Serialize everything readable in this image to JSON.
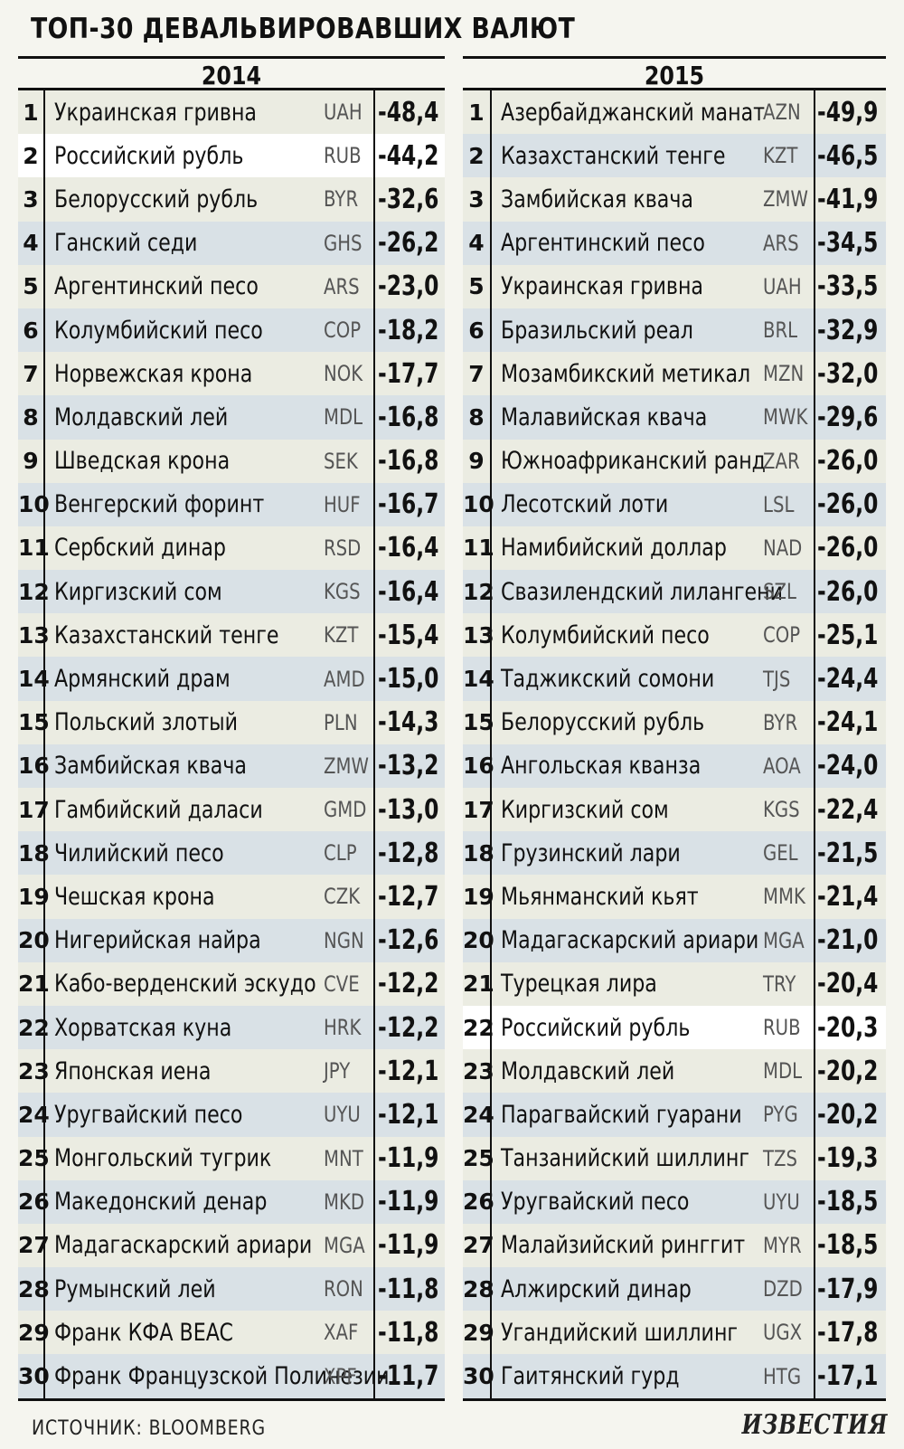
{
  "title": "ТОП-30 ДЕВАЛЬВИРОВАВШИХ ВАЛЮТ",
  "source": "ИСТОЧНИК: BLOOMBERG",
  "logo": "ИЗВЕСТИЯ",
  "tables": [
    {
      "year": "2014",
      "rows": [
        {
          "rank": "1",
          "name": "Украинская гривна",
          "code": "UAH",
          "value": "-48,4"
        },
        {
          "rank": "2",
          "name": "Российский рубль",
          "code": "RUB",
          "value": "-44,2",
          "highlight": true
        },
        {
          "rank": "3",
          "name": "Белорусский рубль",
          "code": "BYR",
          "value": "-32,6"
        },
        {
          "rank": "4",
          "name": "Ганский седи",
          "code": "GHS",
          "value": "-26,2"
        },
        {
          "rank": "5",
          "name": "Аргентинский песо",
          "code": "ARS",
          "value": "-23,0"
        },
        {
          "rank": "6",
          "name": "Колумбийский песо",
          "code": "COP",
          "value": "-18,2"
        },
        {
          "rank": "7",
          "name": "Норвежская крона",
          "code": "NOK",
          "value": "-17,7"
        },
        {
          "rank": "8",
          "name": "Молдавский лей",
          "code": "MDL",
          "value": "-16,8"
        },
        {
          "rank": "9",
          "name": "Шведская крона",
          "code": "SEK",
          "value": "-16,8"
        },
        {
          "rank": "10",
          "name": "Венгерский форинт",
          "code": "HUF",
          "value": "-16,7"
        },
        {
          "rank": "11",
          "name": "Сербский динар",
          "code": "RSD",
          "value": "-16,4"
        },
        {
          "rank": "12",
          "name": "Киргизский сом",
          "code": "KGS",
          "value": "-16,4"
        },
        {
          "rank": "13",
          "name": "Казахстанский тенге",
          "code": "KZT",
          "value": "-15,4"
        },
        {
          "rank": "14",
          "name": "Армянский драм",
          "code": "AMD",
          "value": "-15,0"
        },
        {
          "rank": "15",
          "name": "Польский злотый",
          "code": "PLN",
          "value": "-14,3"
        },
        {
          "rank": "16",
          "name": "Замбийская квача",
          "code": "ZMW",
          "value": "-13,2"
        },
        {
          "rank": "17",
          "name": "Гамбийский даласи",
          "code": "GMD",
          "value": "-13,0"
        },
        {
          "rank": "18",
          "name": "Чилийский песо",
          "code": "CLP",
          "value": "-12,8"
        },
        {
          "rank": "19",
          "name": "Чешская крона",
          "code": "CZK",
          "value": "-12,7"
        },
        {
          "rank": "20",
          "name": "Нигерийская найра",
          "code": "NGN",
          "value": "-12,6"
        },
        {
          "rank": "21",
          "name": "Кабо-верденский эскудо",
          "code": "CVE",
          "value": "-12,2"
        },
        {
          "rank": "22",
          "name": "Хорватская куна",
          "code": "HRK",
          "value": "-12,2"
        },
        {
          "rank": "23",
          "name": "Японская иена",
          "code": "JPY",
          "value": "-12,1"
        },
        {
          "rank": "24",
          "name": "Уругвайский песо",
          "code": "UYU",
          "value": "-12,1"
        },
        {
          "rank": "25",
          "name": "Монгольский тугрик",
          "code": "MNT",
          "value": "-11,9"
        },
        {
          "rank": "26",
          "name": "Македонский денар",
          "code": "MKD",
          "value": "-11,9"
        },
        {
          "rank": "27",
          "name": "Мадагаскарский ариари",
          "code": "MGA",
          "value": "-11,9"
        },
        {
          "rank": "28",
          "name": "Румынский лей",
          "code": "RON",
          "value": "-11,8"
        },
        {
          "rank": "29",
          "name": "Франк КФА BEAC",
          "code": "XAF",
          "value": "-11,8"
        },
        {
          "rank": "30",
          "name": "Франк Французской Полинезии",
          "code": "XPF",
          "value": "-11,7"
        }
      ]
    },
    {
      "year": "2015",
      "rows": [
        {
          "rank": "1",
          "name": "Азербайджанский манат",
          "code": "AZN",
          "value": "-49,9"
        },
        {
          "rank": "2",
          "name": "Казахстанский тенге",
          "code": "KZT",
          "value": "-46,5"
        },
        {
          "rank": "3",
          "name": "Замбийская квача",
          "code": "ZMW",
          "value": "-41,9"
        },
        {
          "rank": "4",
          "name": "Аргентинский песо",
          "code": "ARS",
          "value": "-34,5"
        },
        {
          "rank": "5",
          "name": "Украинская гривна",
          "code": "UAH",
          "value": "-33,5"
        },
        {
          "rank": "6",
          "name": "Бразильский реал",
          "code": "BRL",
          "value": "-32,9"
        },
        {
          "rank": "7",
          "name": "Мозамбикский метикал",
          "code": "MZN",
          "value": "-32,0"
        },
        {
          "rank": "8",
          "name": "Малавийская квача",
          "code": "MWK",
          "value": "-29,6"
        },
        {
          "rank": "9",
          "name": "Южноафриканский ранд",
          "code": "ZAR",
          "value": "-26,0"
        },
        {
          "rank": "10",
          "name": "Лесотский лоти",
          "code": "LSL",
          "value": "-26,0"
        },
        {
          "rank": "11",
          "name": "Намибийский доллар",
          "code": "NAD",
          "value": "-26,0"
        },
        {
          "rank": "12",
          "name": "Свазилендский лилангени",
          "code": "SZL",
          "value": "-26,0"
        },
        {
          "rank": "13",
          "name": "Колумбийский песо",
          "code": "COP",
          "value": "-25,1"
        },
        {
          "rank": "14",
          "name": "Таджикский сомони",
          "code": "TJS",
          "value": "-24,4"
        },
        {
          "rank": "15",
          "name": "Белорусский рубль",
          "code": "BYR",
          "value": "-24,1"
        },
        {
          "rank": "16",
          "name": "Ангольская кванза",
          "code": "AOA",
          "value": "-24,0"
        },
        {
          "rank": "17",
          "name": "Киргизский сом",
          "code": "KGS",
          "value": "-22,4"
        },
        {
          "rank": "18",
          "name": "Грузинский лари",
          "code": "GEL",
          "value": "-21,5"
        },
        {
          "rank": "19",
          "name": "Мьянманский кьят",
          "code": "MMK",
          "value": "-21,4"
        },
        {
          "rank": "20",
          "name": "Мадагаскарский ариари",
          "code": "MGA",
          "value": "-21,0"
        },
        {
          "rank": "21",
          "name": "Турецкая лира",
          "code": "TRY",
          "value": "-20,4"
        },
        {
          "rank": "22",
          "name": "Российский рубль",
          "code": "RUB",
          "value": "-20,3",
          "highlight": true
        },
        {
          "rank": "23",
          "name": "Молдавский лей",
          "code": "MDL",
          "value": "-20,2"
        },
        {
          "rank": "24",
          "name": "Парагвайский гуарани",
          "code": "PYG",
          "value": "-20,2"
        },
        {
          "rank": "25",
          "name": "Танзанийский шиллинг",
          "code": "TZS",
          "value": "-19,3"
        },
        {
          "rank": "26",
          "name": "Уругвайский песо",
          "code": "UYU",
          "value": "-18,5"
        },
        {
          "rank": "27",
          "name": "Малайзийский ринггит",
          "code": "MYR",
          "value": "-18,5"
        },
        {
          "rank": "28",
          "name": "Алжирский динар",
          "code": "DZD",
          "value": "-17,9"
        },
        {
          "rank": "29",
          "name": "Угандийский шиллинг",
          "code": "UGX",
          "value": "-17,8"
        },
        {
          "rank": "30",
          "name": "Гаитянский гурд",
          "code": "HTG",
          "value": "-17,1"
        }
      ]
    }
  ]
}
